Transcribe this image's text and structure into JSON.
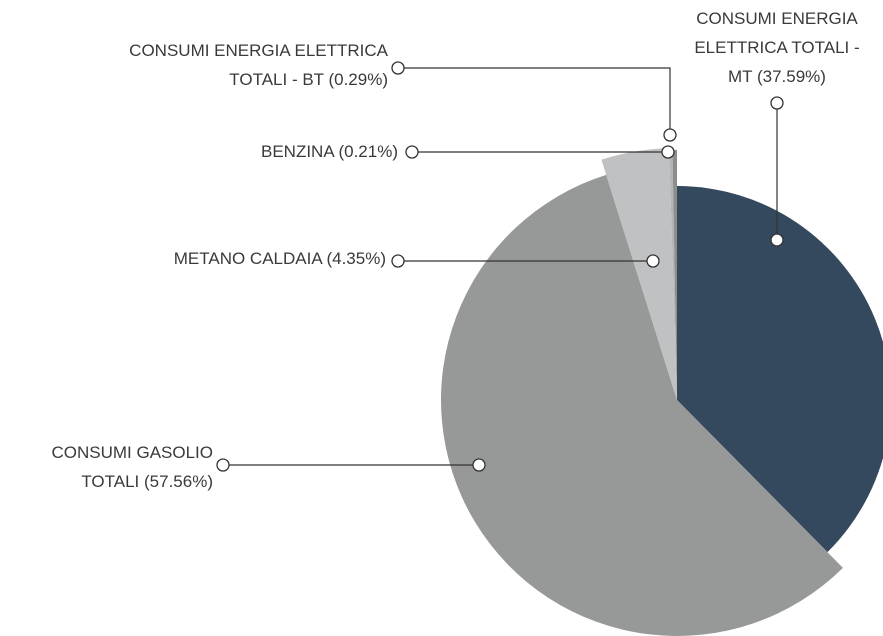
{
  "chart_data": {
    "type": "pie",
    "categories": [
      "CONSUMI ENERGIA ELETTRICA TOTALI - MT (37.59%)",
      "CONSUMI GASOLIO TOTALI (57.56%)",
      "METANO CALDAIA (4.35%)",
      "BENZINA (0.21%)",
      "CONSUMI ENERGIA ELETTRICA TOTALI - BT (0.29%)"
    ],
    "values": [
      37.59,
      57.56,
      4.35,
      0.21,
      0.29
    ],
    "colors": [
      "#34495e",
      "#979998",
      "#c0c1c3",
      "#b3b4b5",
      "#8c8d8d"
    ]
  }
}
